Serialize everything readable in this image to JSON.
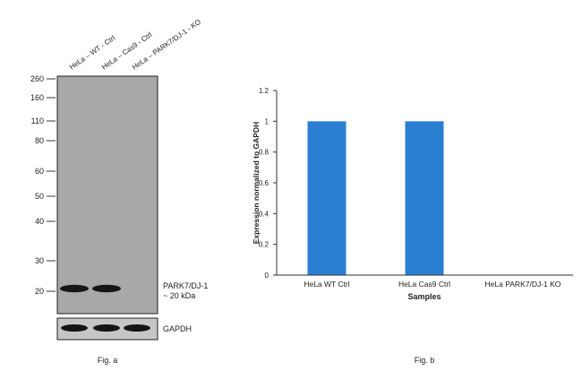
{
  "blot": {
    "lanes": [
      "HeLa – WT - Ctrl",
      "HeLa – Cas9 - Ctrl",
      "HeLa – PARK7/DJ-1 - KO"
    ],
    "markers": [
      "260",
      "160",
      "110",
      "80",
      "60",
      "50",
      "40",
      "30",
      "20"
    ],
    "protein_label": "PARK7/DJ-1",
    "size_label": "~ 20 kDa",
    "control_label": "GAPDH",
    "target_band_intensity": [
      1,
      1,
      0
    ],
    "control_band_intensity": [
      1,
      1,
      1
    ],
    "caption": "Fig. a"
  },
  "chart_data": {
    "type": "bar",
    "categories": [
      "HeLa WT Ctrl",
      "HeLa Cas9 Ctrl",
      "HeLa PARK7/DJ-1 KO"
    ],
    "values": [
      1,
      1,
      0
    ],
    "xlabel": "Samples",
    "ylabel": "Expression  normalized to GAPDH",
    "ylim": [
      0,
      1.2
    ],
    "yticks": [
      "0",
      "0.2",
      "0.4",
      "0.6",
      "0.8",
      "1",
      "1.2"
    ],
    "bar_color": "#2a7fd3",
    "grid": false,
    "caption": "Fig. b"
  }
}
